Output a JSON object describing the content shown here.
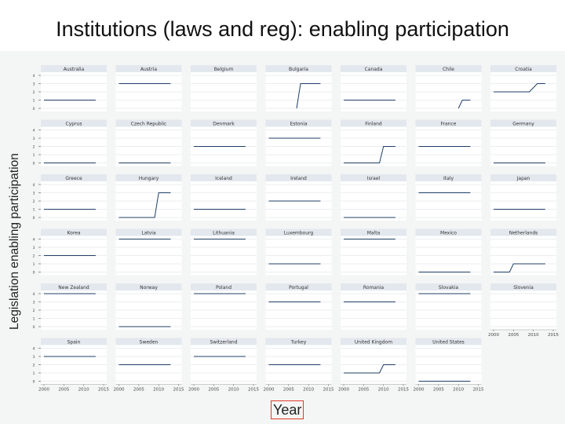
{
  "title": "Institutions (laws and reg): enabling participation",
  "footer_text": "",
  "chart_data": {
    "type": "line",
    "layout": "small-multiples",
    "ylabel": "Legislation enabling participation",
    "xlabel": "Year",
    "xlim": [
      2000,
      2015
    ],
    "ylim": [
      0,
      4
    ],
    "x_ticks": [
      2000,
      2005,
      2010,
      2015
    ],
    "y_ticks": [
      0,
      1,
      2,
      3,
      4
    ],
    "grid": true,
    "colors": {
      "line": "#1f3f66",
      "panel_header": "#e3e8ee",
      "grid": "#e4e9ee"
    },
    "panels": [
      {
        "name": "Australia",
        "series": [
          [
            2000,
            1
          ],
          [
            2013,
            1
          ]
        ]
      },
      {
        "name": "Austria",
        "series": [
          [
            2000,
            3
          ],
          [
            2013,
            3
          ]
        ]
      },
      {
        "name": "Belgium",
        "series": []
      },
      {
        "name": "Bulgaria",
        "series": [
          [
            2007,
            0
          ],
          [
            2008,
            3
          ],
          [
            2013,
            3
          ]
        ]
      },
      {
        "name": "Canada",
        "series": [
          [
            2000,
            1
          ],
          [
            2013,
            1
          ]
        ]
      },
      {
        "name": "Chile",
        "series": [
          [
            2010,
            0
          ],
          [
            2011,
            1
          ],
          [
            2013,
            1
          ]
        ]
      },
      {
        "name": "Croatia",
        "series": [
          [
            2000,
            2
          ],
          [
            2009,
            2
          ],
          [
            2011,
            3
          ],
          [
            2013,
            3
          ]
        ]
      },
      {
        "name": "Cyprus",
        "series": [
          [
            2000,
            0
          ],
          [
            2013,
            0
          ]
        ]
      },
      {
        "name": "Czech Republic",
        "series": [
          [
            2000,
            0
          ],
          [
            2013,
            0
          ]
        ]
      },
      {
        "name": "Denmark",
        "series": [
          [
            2000,
            2
          ],
          [
            2013,
            2
          ]
        ]
      },
      {
        "name": "Estonia",
        "series": [
          [
            2000,
            3
          ],
          [
            2013,
            3
          ]
        ]
      },
      {
        "name": "Finland",
        "series": [
          [
            2000,
            0
          ],
          [
            2009,
            0
          ],
          [
            2010,
            2
          ],
          [
            2013,
            2
          ]
        ]
      },
      {
        "name": "France",
        "series": [
          [
            2000,
            2
          ],
          [
            2013,
            2
          ]
        ]
      },
      {
        "name": "Germany",
        "series": [
          [
            2000,
            0
          ],
          [
            2013,
            0
          ]
        ]
      },
      {
        "name": "Greece",
        "series": [
          [
            2000,
            1
          ],
          [
            2013,
            1
          ]
        ]
      },
      {
        "name": "Hungary",
        "series": [
          [
            2000,
            0
          ],
          [
            2009,
            0
          ],
          [
            2010,
            3
          ],
          [
            2013,
            3
          ]
        ]
      },
      {
        "name": "Iceland",
        "series": [
          [
            2000,
            1
          ],
          [
            2013,
            1
          ]
        ]
      },
      {
        "name": "Ireland",
        "series": [
          [
            2000,
            2
          ],
          [
            2013,
            2
          ]
        ]
      },
      {
        "name": "Israel",
        "series": [
          [
            2000,
            0
          ],
          [
            2013,
            0
          ]
        ]
      },
      {
        "name": "Italy",
        "series": [
          [
            2000,
            3
          ],
          [
            2013,
            3
          ]
        ]
      },
      {
        "name": "Japan",
        "series": [
          [
            2000,
            1
          ],
          [
            2013,
            1
          ]
        ]
      },
      {
        "name": "Korea",
        "series": [
          [
            2000,
            2
          ],
          [
            2013,
            2
          ]
        ]
      },
      {
        "name": "Latvia",
        "series": [
          [
            2000,
            4
          ],
          [
            2013,
            4
          ]
        ]
      },
      {
        "name": "Lithuania",
        "series": [
          [
            2000,
            4
          ],
          [
            2013,
            4
          ]
        ]
      },
      {
        "name": "Luxembourg",
        "series": [
          [
            2000,
            1
          ],
          [
            2013,
            1
          ]
        ]
      },
      {
        "name": "Malta",
        "series": [
          [
            2000,
            4
          ],
          [
            2013,
            4
          ]
        ]
      },
      {
        "name": "Mexico",
        "series": [
          [
            2000,
            0
          ],
          [
            2013,
            0
          ]
        ]
      },
      {
        "name": "Netherlands",
        "series": [
          [
            2000,
            0
          ],
          [
            2004,
            0
          ],
          [
            2005,
            1
          ],
          [
            2013,
            1
          ]
        ]
      },
      {
        "name": "New Zealand",
        "series": [
          [
            2000,
            4
          ],
          [
            2013,
            4
          ]
        ]
      },
      {
        "name": "Norway",
        "series": [
          [
            2000,
            0
          ],
          [
            2013,
            0
          ]
        ]
      },
      {
        "name": "Poland",
        "series": [
          [
            2000,
            4
          ],
          [
            2013,
            4
          ]
        ]
      },
      {
        "name": "Portugal",
        "series": [
          [
            2000,
            3
          ],
          [
            2013,
            3
          ]
        ]
      },
      {
        "name": "Romania",
        "series": [
          [
            2000,
            3
          ],
          [
            2013,
            3
          ]
        ]
      },
      {
        "name": "Slovakia",
        "series": [
          [
            2000,
            4
          ],
          [
            2013,
            4
          ]
        ]
      },
      {
        "name": "Slovenia",
        "series": [],
        "shows_x_axis": true
      },
      {
        "name": "Spain",
        "series": [
          [
            2000,
            3
          ],
          [
            2013,
            3
          ]
        ]
      },
      {
        "name": "Sweden",
        "series": [
          [
            2000,
            2
          ],
          [
            2013,
            2
          ]
        ]
      },
      {
        "name": "Switzerland",
        "series": [
          [
            2000,
            3
          ],
          [
            2013,
            3
          ]
        ]
      },
      {
        "name": "Turkey",
        "series": [
          [
            2000,
            2
          ],
          [
            2013,
            2
          ]
        ]
      },
      {
        "name": "United Kingdom",
        "series": [
          [
            2000,
            1
          ],
          [
            2009,
            1
          ],
          [
            2010,
            2
          ],
          [
            2013,
            2
          ]
        ]
      },
      {
        "name": "United States",
        "series": [
          [
            2000,
            0
          ],
          [
            2013,
            0
          ]
        ]
      }
    ]
  }
}
